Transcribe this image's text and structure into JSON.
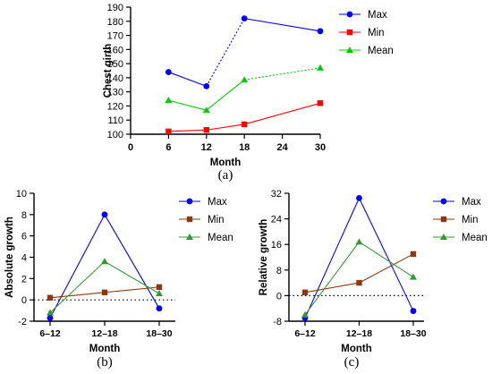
{
  "chart_data": [
    {
      "type": "line",
      "panel_label": "(a)",
      "xlabel": "Month",
      "ylabel": "Chest girth",
      "x": [
        6,
        12,
        18,
        30
      ],
      "xticks": [
        0,
        6,
        12,
        18,
        24,
        30
      ],
      "xtick_labels": [
        "0",
        "6",
        "12",
        "18",
        "24",
        "30"
      ],
      "xlim": [
        0,
        30
      ],
      "ylim": [
        100,
        190
      ],
      "yticks": [
        100,
        110,
        120,
        130,
        140,
        150,
        160,
        170,
        180,
        190
      ],
      "ytick_labels": [
        "100",
        "110",
        "120",
        "130",
        "140",
        "150",
        "160",
        "170",
        "180",
        "190"
      ],
      "series": [
        {
          "name": "Max",
          "values": [
            144,
            134,
            182,
            173
          ],
          "color": "#0000ff",
          "marker": "circle"
        },
        {
          "name": "Min",
          "values": [
            102,
            103,
            107,
            122
          ],
          "color": "#ff0000",
          "marker": "square"
        },
        {
          "name": "Mean",
          "values": [
            124,
            117,
            138.5,
            147
          ],
          "color": "#00cc00",
          "marker": "triangle"
        }
      ],
      "legend_position": "right"
    },
    {
      "type": "line",
      "panel_label": "(b)",
      "xlabel": "Month",
      "ylabel": "Absolute growth",
      "categories": [
        "6–12",
        "12–18",
        "18–30"
      ],
      "ylim": [
        -2,
        10
      ],
      "yticks": [
        -2,
        0,
        2,
        4,
        6,
        8,
        10
      ],
      "ytick_labels": [
        "-2",
        "0",
        "2",
        "4",
        "6",
        "8",
        "10"
      ],
      "zero_line": "dotted",
      "series": [
        {
          "name": "Max",
          "values": [
            -1.7,
            8.0,
            -0.8
          ],
          "color": "#0000ff",
          "marker": "circle"
        },
        {
          "name": "Min",
          "values": [
            0.2,
            0.7,
            1.2
          ],
          "color": "#8b3a0f",
          "marker": "square"
        },
        {
          "name": "Mean",
          "values": [
            -1.2,
            3.6,
            0.6
          ],
          "color": "#339933",
          "marker": "triangle"
        }
      ],
      "legend_position": "right"
    },
    {
      "type": "line",
      "panel_label": "(c)",
      "xlabel": "Month",
      "ylabel": "Relative growth",
      "categories": [
        "6–12",
        "12–18",
        "18–30"
      ],
      "ylim": [
        -8,
        32
      ],
      "yticks": [
        -8,
        0,
        8,
        16,
        24,
        32
      ],
      "ytick_labels": [
        "-8",
        "0",
        "8",
        "16",
        "24",
        "32"
      ],
      "zero_line": "dotted",
      "series": [
        {
          "name": "Max",
          "values": [
            -7.0,
            30.5,
            -4.8
          ],
          "color": "#0000ff",
          "marker": "circle"
        },
        {
          "name": "Min",
          "values": [
            1.0,
            4.0,
            13.0
          ],
          "color": "#8b3a0f",
          "marker": "square"
        },
        {
          "name": "Mean",
          "values": [
            -6.0,
            16.8,
            5.8
          ],
          "color": "#339933",
          "marker": "triangle"
        }
      ],
      "legend_position": "right"
    }
  ]
}
